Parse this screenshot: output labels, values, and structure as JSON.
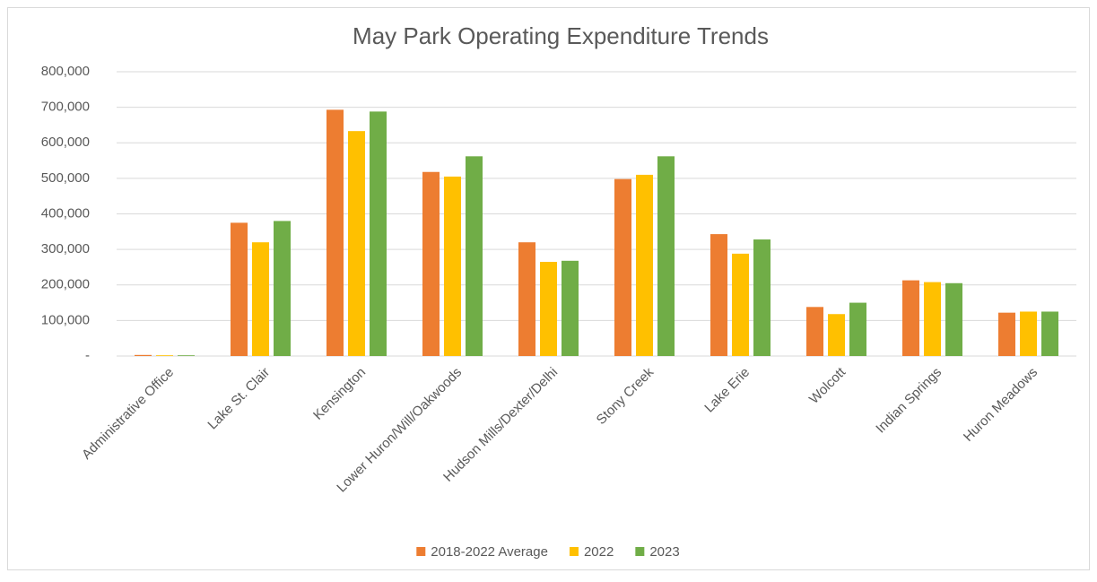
{
  "chart_data": {
    "type": "bar",
    "title": "May Park Operating Expenditure Trends",
    "categories": [
      "Administrative Office",
      "Lake St. Clair",
      "Kensington",
      "Lower Huron/Will/Oakwoods",
      "Hudson Mills/Dexter/Delhi",
      "Stony Creek",
      "Lake Erie",
      "Wolcott",
      "Indian Springs",
      "Huron Meadows"
    ],
    "series": [
      {
        "name": "2018-2022 Average",
        "color": "#ed7d31",
        "values": [
          3000,
          375000,
          693000,
          518000,
          320000,
          498000,
          343000,
          138000,
          213000,
          122000
        ]
      },
      {
        "name": "2022",
        "color": "#ffc000",
        "values": [
          2000,
          320000,
          633000,
          505000,
          265000,
          510000,
          288000,
          118000,
          208000,
          125000
        ]
      },
      {
        "name": "2023",
        "color": "#70ad47",
        "values": [
          2000,
          380000,
          688000,
          562000,
          268000,
          562000,
          328000,
          150000,
          205000,
          125000
        ]
      }
    ],
    "ylim": [
      0,
      800000
    ],
    "yticks": [
      {
        "value": 0,
        "label": "-"
      },
      {
        "value": 100000,
        "label": "100,000"
      },
      {
        "value": 200000,
        "label": "200,000"
      },
      {
        "value": 300000,
        "label": "300,000"
      },
      {
        "value": 400000,
        "label": "400,000"
      },
      {
        "value": 500000,
        "label": "500,000"
      },
      {
        "value": 600000,
        "label": "600,000"
      },
      {
        "value": 700000,
        "label": "700,000"
      },
      {
        "value": 800000,
        "label": "800,000"
      }
    ],
    "grid": true,
    "legend": "bottom"
  }
}
